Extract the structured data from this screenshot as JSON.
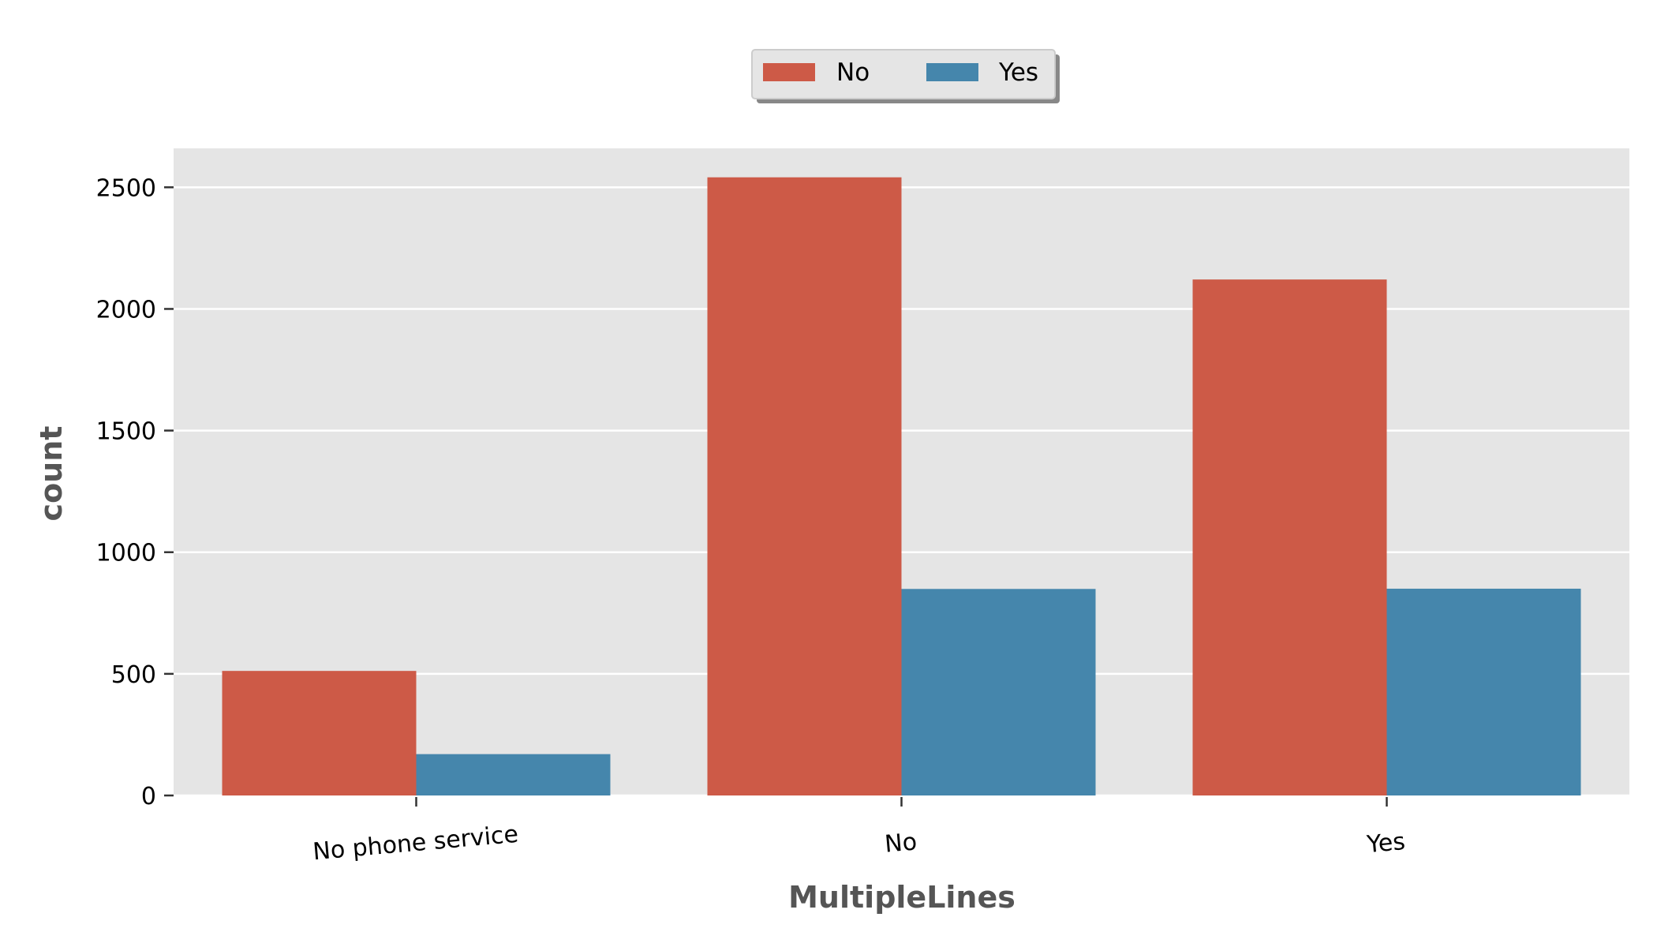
{
  "chart_data": {
    "type": "bar",
    "categories": [
      "No phone service",
      "No",
      "Yes"
    ],
    "series": [
      {
        "name": "No",
        "values": [
          512,
          2541,
          2121
        ],
        "color": "#cd5a47"
      },
      {
        "name": "Yes",
        "values": [
          170,
          849,
          850
        ],
        "color": "#4586ac"
      }
    ],
    "xlabel": "MultipleLines",
    "ylabel": "count",
    "ylim": [
      0,
      2660
    ],
    "yticks": [
      0,
      500,
      1000,
      1500,
      2000,
      2500
    ],
    "grid": true,
    "legend_position": "top-center",
    "background": "#e5e5e5",
    "gridline_color": "#ffffff"
  }
}
